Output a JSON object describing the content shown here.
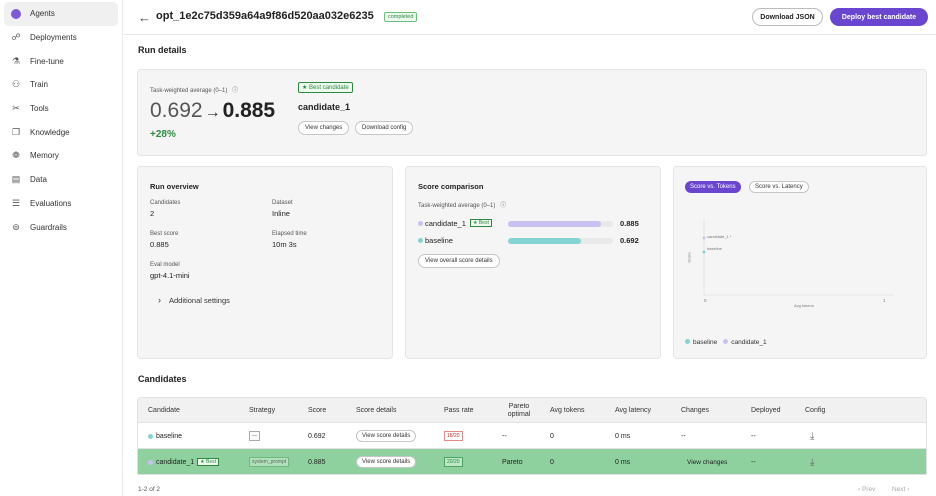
{
  "sidebar": {
    "items": [
      {
        "label": "Agents",
        "icon": "agent-icon",
        "active": true
      },
      {
        "label": "Deployments",
        "icon": "deployments-icon"
      },
      {
        "label": "Fine-tune",
        "icon": "finetune-icon"
      },
      {
        "label": "Train",
        "icon": "train-icon"
      },
      {
        "label": "Tools",
        "icon": "tools-icon"
      },
      {
        "label": "Knowledge",
        "icon": "knowledge-icon"
      },
      {
        "label": "Memory",
        "icon": "memory-icon"
      },
      {
        "label": "Data",
        "icon": "data-icon"
      },
      {
        "label": "Evaluations",
        "icon": "evaluations-icon"
      },
      {
        "label": "Guardrails",
        "icon": "guardrails-icon"
      }
    ]
  },
  "header": {
    "back": "←",
    "run_id": "opt_1e2c75d359a64a9f86d520aa032e6235",
    "status": "completed",
    "download_json": "Download JSON",
    "deploy": "Deploy best candidate"
  },
  "run_details": {
    "title": "Run details",
    "metric_label": "Task-weighted average (0–1)",
    "info_icon": "ⓘ",
    "from_score": "0.692",
    "arrow": "→",
    "to_score": "0.885",
    "improvement": "+28%",
    "best_badge": "★ Best candidate",
    "best_name": "candidate_1",
    "view_changes": "View changes",
    "download_config": "Download config"
  },
  "overview": {
    "title": "Run overview",
    "candidates_label": "Candidates",
    "candidates_value": "2",
    "dataset_label": "Dataset",
    "dataset_value": "Inline",
    "best_score_label": "Best score",
    "best_score_value": "0.885",
    "elapsed_label": "Elapsed time",
    "elapsed_value": "10m 3s",
    "eval_model_label": "Eval model",
    "eval_model_value": "gpt-4.1-mini",
    "additional": "Additional settings",
    "chevron": "›"
  },
  "score_comparison": {
    "title": "Score comparison",
    "metric_label": "Task-weighted average (0–1)",
    "rows": [
      {
        "name": "candidate_1",
        "best": "★ Best",
        "value": "0.885",
        "fraction": 0.885,
        "color": "#c9c2f0"
      },
      {
        "name": "baseline",
        "best": "",
        "value": "0.692",
        "fraction": 0.692,
        "color": "#86d3d3"
      }
    ],
    "details_button": "View overall score details"
  },
  "scatter": {
    "tab_active": "Score vs. Tokens",
    "tab_other": "Score vs. Latency",
    "ylabel": "Score",
    "xlabel": "Avg tokens",
    "xtick0": "0",
    "xtick1": "1",
    "point1_label": "candidate_1 *",
    "point2_label": "baseline",
    "legend": [
      {
        "name": "baseline",
        "color": "#86d3d3"
      },
      {
        "name": "candidate_1",
        "color": "#c9c2f0"
      }
    ]
  },
  "candidates": {
    "title": "Candidates",
    "headers": [
      "Candidate",
      "Strategy",
      "Score",
      "Score details",
      "Pass rate",
      "Pareto optimal",
      "Avg tokens",
      "Avg latency",
      "Changes",
      "Deployed",
      "Config"
    ],
    "rows": [
      {
        "name": "baseline",
        "best": "",
        "strategy": "—",
        "score": "0.692",
        "details": "View score details",
        "pass": "18/20",
        "pareto": "--",
        "tokens": "0",
        "latency": "0 ms",
        "changes": "--",
        "deployed": "--",
        "dot": "#86d3d3"
      },
      {
        "name": "candidate_1",
        "best": "★ Best",
        "strategy": "system_prompt",
        "score": "0.885",
        "details": "View score details",
        "pass": "20/20",
        "pareto": "Pareto",
        "tokens": "0",
        "latency": "0 ms",
        "changes": "View changes",
        "deployed": "--",
        "dot": "#c9c2f0"
      }
    ],
    "download_icon": "⤓",
    "count": "1-2 of 2",
    "prev": "‹  Prev",
    "next": "Next  ›"
  }
}
